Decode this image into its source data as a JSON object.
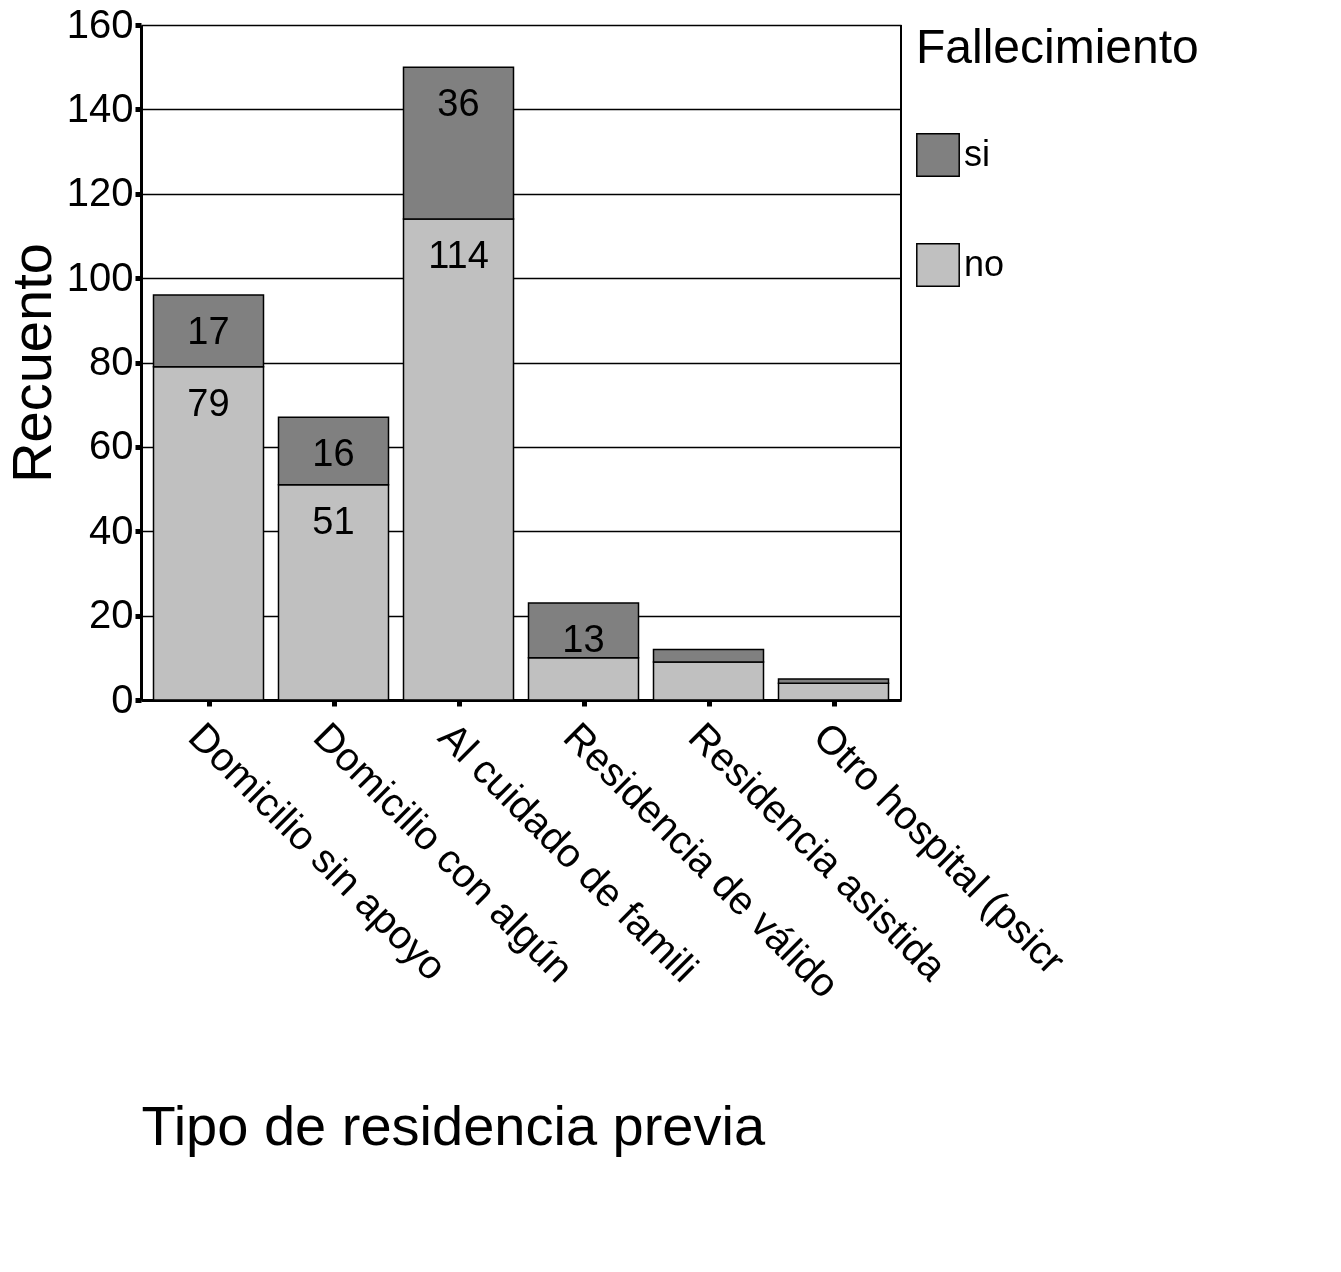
{
  "chart_data": {
    "type": "bar",
    "stacked": true,
    "xlabel": "Tipo de residencia previa",
    "ylabel": "Recuento",
    "legend_title": "Fallecimiento",
    "categories": [
      "Domicilio sin apoyo",
      "Domicilio con algún",
      "Al cuidado de famili",
      "Residencia de válido",
      "Residencia asistida",
      "Otro hospital (psicr"
    ],
    "series": [
      {
        "name": "no",
        "color": "#c0c0c0",
        "values": [
          79,
          51,
          114,
          10,
          9,
          4
        ],
        "value_labels": [
          "79",
          "51",
          "114",
          null,
          null,
          null
        ]
      },
      {
        "name": "si",
        "color": "#808080",
        "values": [
          17,
          16,
          36,
          13,
          3,
          1
        ],
        "value_labels": [
          "17",
          "16",
          "36",
          "13",
          null,
          null
        ]
      }
    ],
    "ylim": [
      0,
      160
    ],
    "yticks": [
      0,
      20,
      40,
      60,
      80,
      100,
      120,
      140,
      160
    ],
    "grid": "y",
    "legend": "right"
  }
}
